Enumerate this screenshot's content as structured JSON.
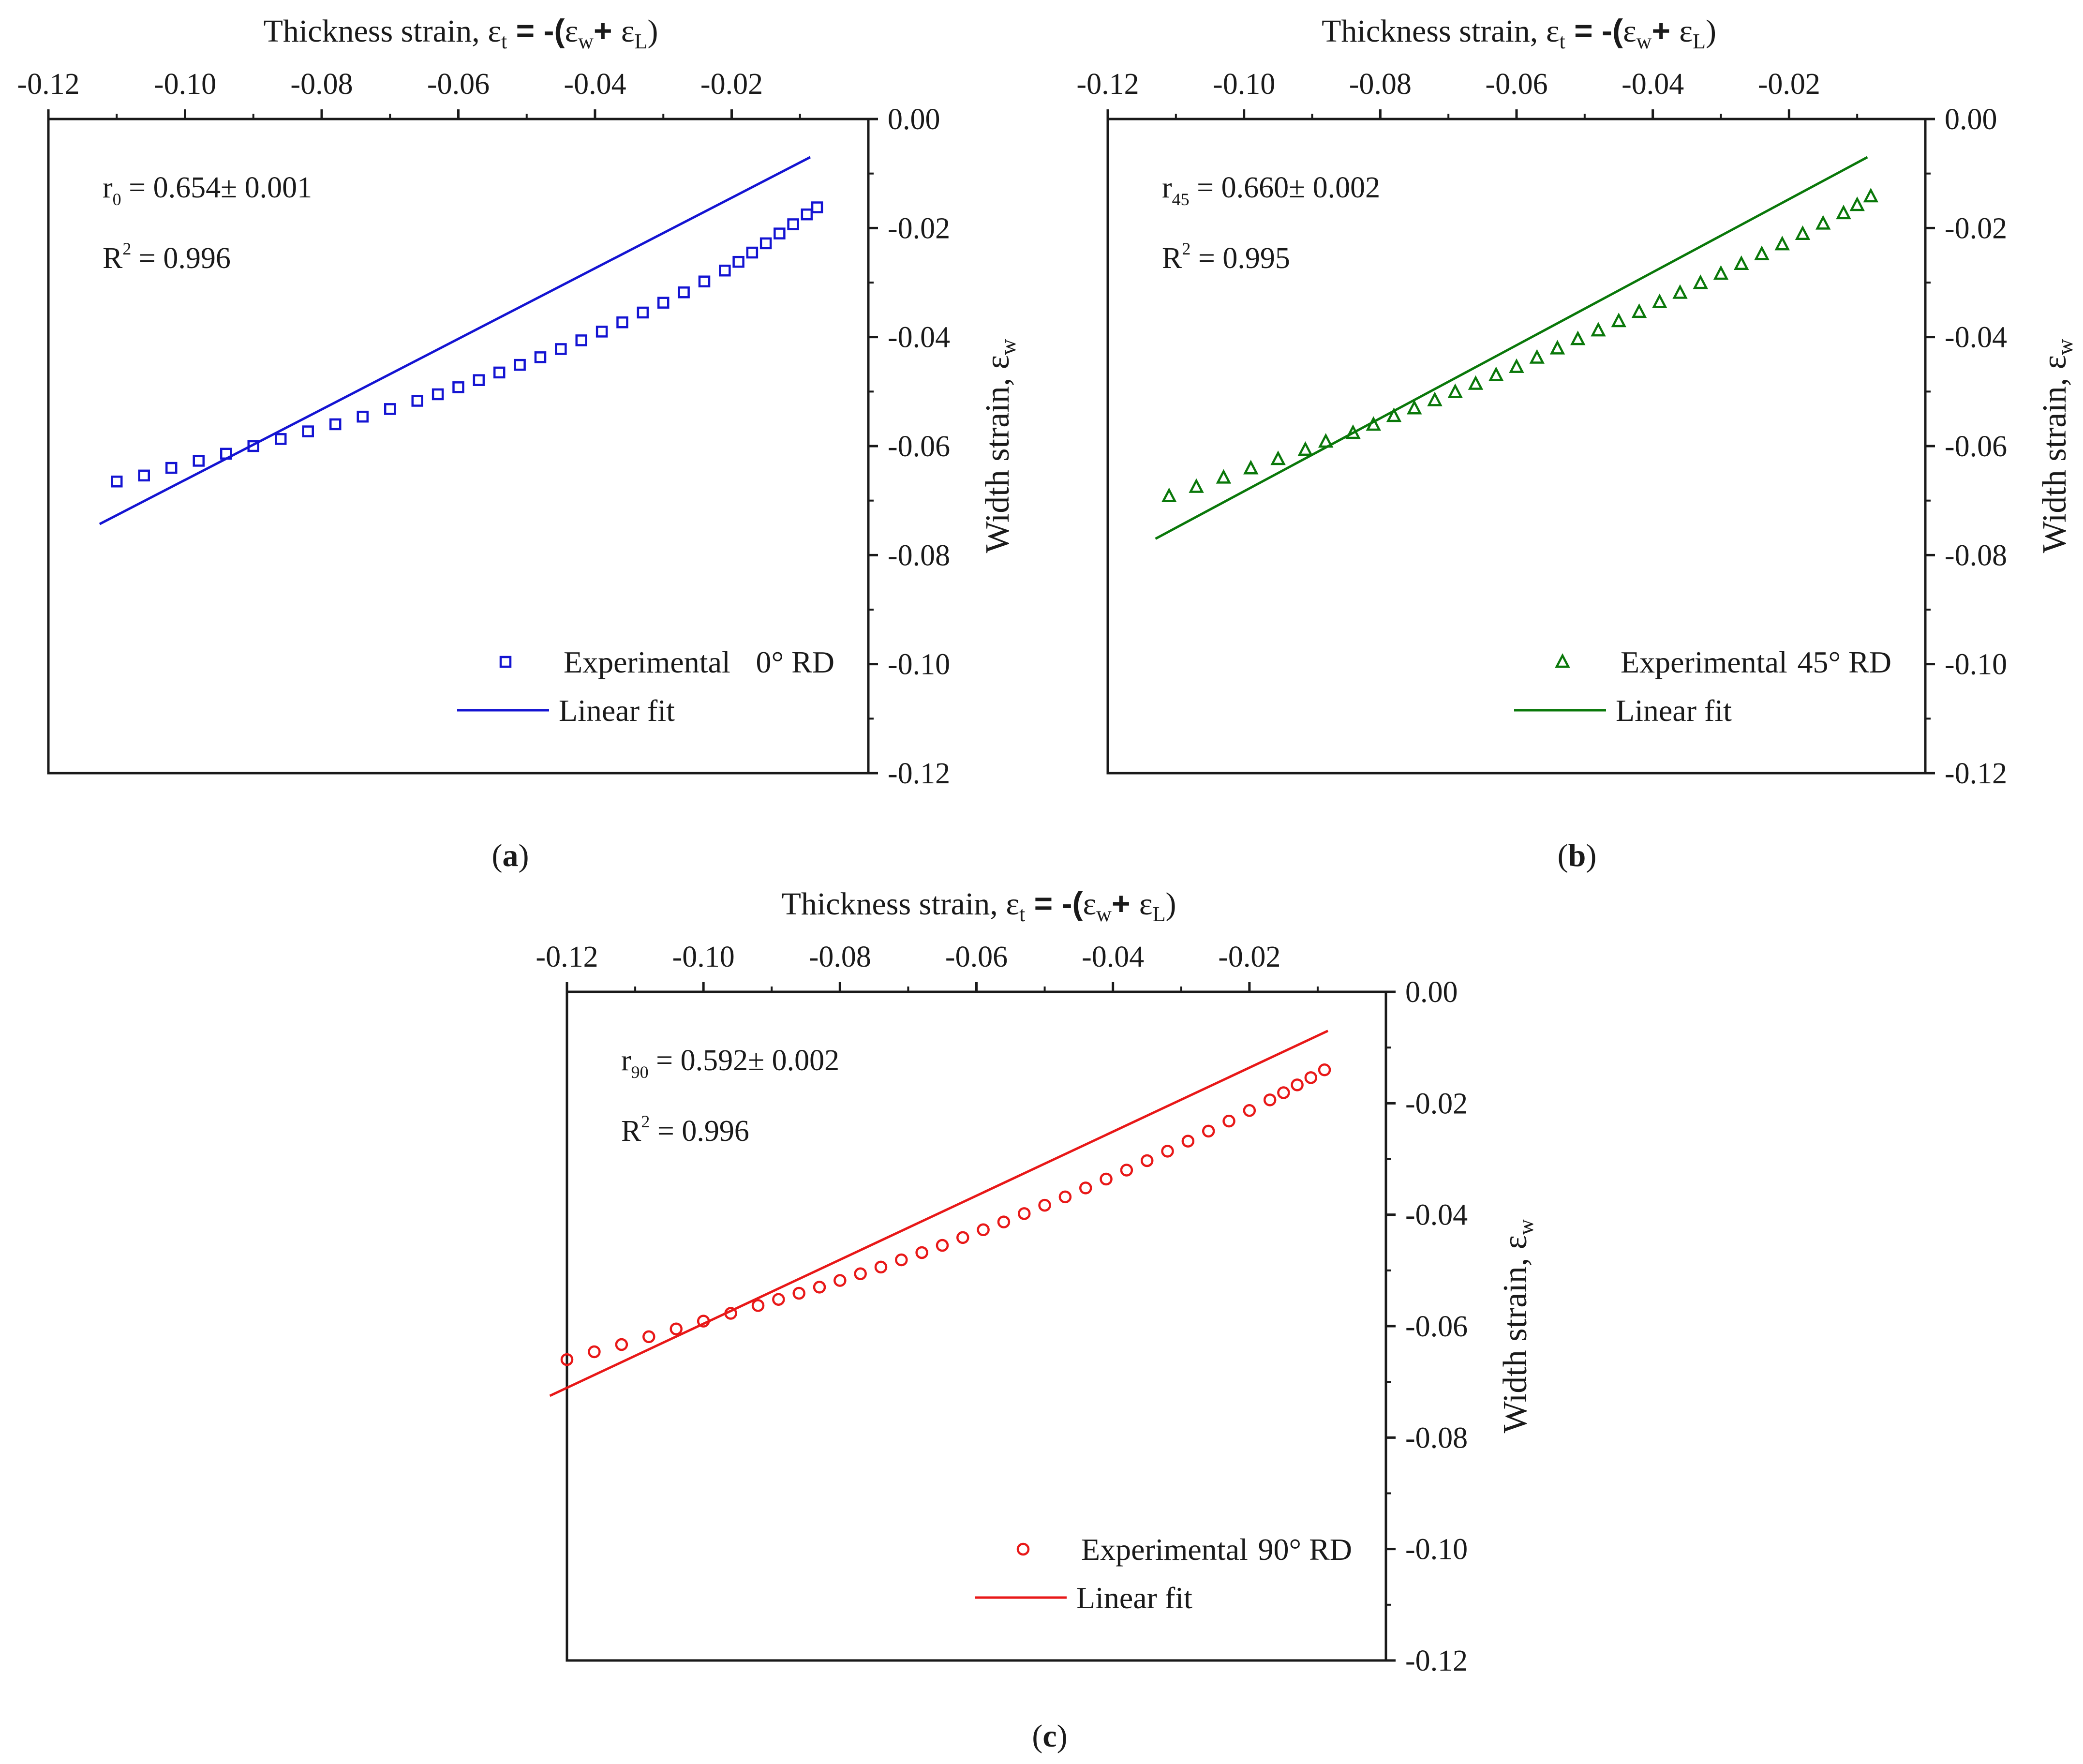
{
  "figure": {
    "panel_labels": [
      "(a)",
      "(b)",
      "(c)"
    ]
  },
  "chart_data": [
    {
      "type": "scatter",
      "panel": "a",
      "panel_label": "(a)",
      "color": "#1414d2",
      "marker": "square",
      "x_axis": {
        "label": "Thickness strain, ",
        "symbol_t": "t",
        "symbol_w": "w",
        "symbol_L": "L",
        "position": "top",
        "range": [
          -0.12,
          -0.0
        ],
        "ticks": [
          -0.12,
          -0.1,
          -0.08,
          -0.06,
          -0.04,
          -0.02
        ],
        "tick_labels": [
          "-0.12",
          "-0.10",
          "-0.08",
          "-0.06",
          "-0.04",
          "-0.02"
        ]
      },
      "y_axis": {
        "label": "Width strain, ",
        "symbol": "w",
        "position": "right",
        "range": [
          -0.12,
          0.0
        ],
        "ticks": [
          0.0,
          -0.02,
          -0.04,
          -0.06,
          -0.08,
          -0.1,
          -0.12
        ],
        "tick_labels": [
          "0.00",
          "-0.02",
          "-0.04",
          "-0.06",
          "-0.08",
          "-0.10",
          "-0.12"
        ]
      },
      "annotation": {
        "r_main": "r",
        "r_sub": "0",
        "r_value": " = 0.654± 0.001",
        "r2_main": "R",
        "r2_sup": "2",
        "r2_value": " = 0.996"
      },
      "legend": {
        "position": "bottom-right",
        "experimental": "Experimental",
        "orientation": "0° RD",
        "fit": "Linear fit"
      },
      "series_experimental": {
        "name": "Experimental 0° RD",
        "x": [
          -0.11,
          -0.106,
          -0.102,
          -0.098,
          -0.094,
          -0.09,
          -0.086,
          -0.082,
          -0.078,
          -0.074,
          -0.07,
          -0.066,
          -0.063,
          -0.06,
          -0.057,
          -0.054,
          -0.051,
          -0.048,
          -0.045,
          -0.042,
          -0.039,
          -0.036,
          -0.033,
          -0.03,
          -0.027,
          -0.024,
          -0.021,
          -0.019,
          -0.017,
          -0.015,
          -0.013,
          -0.011,
          -0.009,
          -0.0075
        ],
        "y": [
          -0.0665,
          -0.0654,
          -0.064,
          -0.0627,
          -0.0614,
          -0.06,
          -0.0587,
          -0.0573,
          -0.056,
          -0.0546,
          -0.0532,
          -0.0517,
          -0.0505,
          -0.0492,
          -0.0479,
          -0.0465,
          -0.0451,
          -0.0437,
          -0.0422,
          -0.0406,
          -0.039,
          -0.0373,
          -0.0355,
          -0.0337,
          -0.0318,
          -0.0298,
          -0.0278,
          -0.0262,
          -0.0245,
          -0.0228,
          -0.021,
          -0.0193,
          -0.0175,
          -0.0162
        ]
      },
      "series_fit": {
        "name": "Linear fit",
        "x": [
          -0.1125,
          -0.0085
        ],
        "y": [
          -0.0743,
          -0.007
        ]
      }
    },
    {
      "type": "scatter",
      "panel": "b",
      "panel_label": "(b)",
      "color": "#0a780a",
      "marker": "triangle",
      "x_axis": {
        "label": "Thickness strain, ",
        "symbol_t": "t",
        "symbol_w": "w",
        "symbol_L": "L",
        "position": "top",
        "range": [
          -0.12,
          -0.0
        ],
        "ticks": [
          -0.12,
          -0.1,
          -0.08,
          -0.06,
          -0.04,
          -0.02
        ],
        "tick_labels": [
          "-0.12",
          "-0.10",
          "-0.08",
          "-0.06",
          "-0.04",
          "-0.02"
        ]
      },
      "y_axis": {
        "label": "Width strain, ",
        "symbol": "w",
        "position": "right",
        "range": [
          -0.12,
          0.0
        ],
        "ticks": [
          0.0,
          -0.02,
          -0.04,
          -0.06,
          -0.08,
          -0.1,
          -0.12
        ],
        "tick_labels": [
          "0.00",
          "-0.02",
          "-0.04",
          "-0.06",
          "-0.08",
          "-0.10",
          "-0.12"
        ]
      },
      "annotation": {
        "r_main": "r",
        "r_sub": "45",
        "r_value": " = 0.660± 0.002",
        "r2_main": "R",
        "r2_sup": "2",
        "r2_value": " = 0.995"
      },
      "legend": {
        "position": "bottom-right",
        "experimental": "Experimental",
        "orientation": "45° RD",
        "fit": "Linear fit"
      },
      "series_experimental": {
        "name": "Experimental 45° RD",
        "x": [
          -0.111,
          -0.107,
          -0.103,
          -0.099,
          -0.095,
          -0.091,
          -0.088,
          -0.084,
          -0.081,
          -0.078,
          -0.075,
          -0.072,
          -0.069,
          -0.066,
          -0.063,
          -0.06,
          -0.057,
          -0.054,
          -0.051,
          -0.048,
          -0.045,
          -0.042,
          -0.039,
          -0.036,
          -0.033,
          -0.03,
          -0.027,
          -0.024,
          -0.021,
          -0.018,
          -0.015,
          -0.012,
          -0.01,
          -0.008
        ],
        "y": [
          -0.0692,
          -0.0675,
          -0.0658,
          -0.0641,
          -0.0624,
          -0.0607,
          -0.0592,
          -0.0576,
          -0.0561,
          -0.0545,
          -0.0531,
          -0.0516,
          -0.0501,
          -0.0486,
          -0.047,
          -0.0455,
          -0.0438,
          -0.0421,
          -0.0404,
          -0.0388,
          -0.0371,
          -0.0354,
          -0.0336,
          -0.0319,
          -0.0301,
          -0.0284,
          -0.0266,
          -0.0248,
          -0.023,
          -0.0211,
          -0.0192,
          -0.0173,
          -0.0158,
          -0.0142
        ]
      },
      "series_fit": {
        "name": "Linear fit",
        "x": [
          -0.113,
          -0.0085
        ],
        "y": [
          -0.077,
          -0.007
        ]
      }
    },
    {
      "type": "scatter",
      "panel": "c",
      "panel_label": "(c)",
      "color": "#e81818",
      "marker": "circle",
      "x_axis": {
        "label": "Thickness strain, ",
        "symbol_t": "t",
        "symbol_w": "w",
        "symbol_L": "L",
        "position": "top",
        "range": [
          -0.12,
          -0.0
        ],
        "ticks": [
          -0.12,
          -0.1,
          -0.08,
          -0.06,
          -0.04,
          -0.02
        ],
        "tick_labels": [
          "-0.12",
          "-0.10",
          "-0.08",
          "-0.06",
          "-0.04",
          "-0.02"
        ]
      },
      "y_axis": {
        "label": "Width strain, ",
        "symbol": "w",
        "position": "right",
        "range": [
          -0.12,
          0.0
        ],
        "ticks": [
          0.0,
          -0.02,
          -0.04,
          -0.06,
          -0.08,
          -0.1,
          -0.12
        ],
        "tick_labels": [
          "0.00",
          "-0.02",
          "-0.04",
          "-0.06",
          "-0.08",
          "-0.10",
          "-0.12"
        ]
      },
      "annotation": {
        "r_main": "r",
        "r_sub": "90",
        "r_value": " = 0.592± 0.002",
        "r2_main": "R",
        "r2_sup": "2",
        "r2_value": " = 0.996"
      },
      "legend": {
        "position": "bottom-right",
        "experimental": "Experimental",
        "orientation": "90° RD",
        "fit": "Linear fit"
      },
      "series_experimental": {
        "name": "Experimental 90° RD",
        "x": [
          -0.12,
          -0.116,
          -0.112,
          -0.108,
          -0.104,
          -0.1,
          -0.096,
          -0.092,
          -0.089,
          -0.086,
          -0.083,
          -0.08,
          -0.077,
          -0.074,
          -0.071,
          -0.068,
          -0.065,
          -0.062,
          -0.059,
          -0.056,
          -0.053,
          -0.05,
          -0.047,
          -0.044,
          -0.041,
          -0.038,
          -0.035,
          -0.032,
          -0.029,
          -0.026,
          -0.023,
          -0.02,
          -0.017,
          -0.015,
          -0.013,
          -0.011,
          -0.009
        ],
        "y": [
          -0.066,
          -0.0646,
          -0.0633,
          -0.0619,
          -0.0605,
          -0.0591,
          -0.0577,
          -0.0563,
          -0.0552,
          -0.0541,
          -0.053,
          -0.0518,
          -0.0506,
          -0.0494,
          -0.0481,
          -0.0468,
          -0.0455,
          -0.0441,
          -0.0427,
          -0.0413,
          -0.0398,
          -0.0383,
          -0.0368,
          -0.0352,
          -0.0336,
          -0.032,
          -0.0303,
          -0.0286,
          -0.0268,
          -0.025,
          -0.0232,
          -0.0213,
          -0.0194,
          -0.0181,
          -0.0167,
          -0.0154,
          -0.014
        ]
      },
      "series_fit": {
        "name": "Linear fit",
        "x": [
          -0.1225,
          -0.0085
        ],
        "y": [
          -0.0725,
          -0.007
        ]
      }
    }
  ]
}
